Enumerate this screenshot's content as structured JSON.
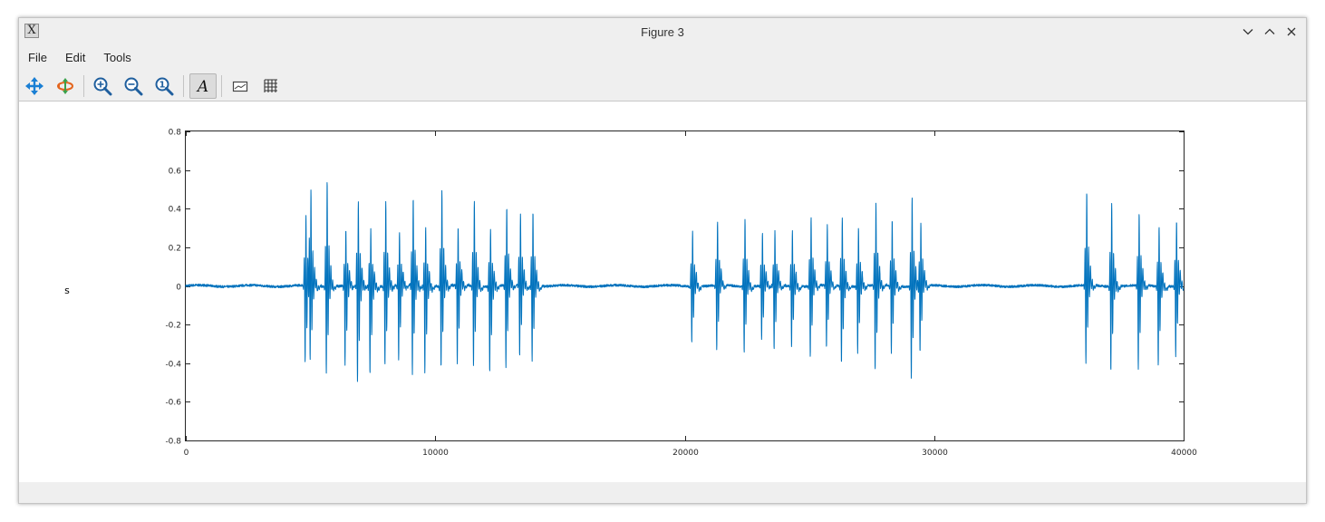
{
  "window": {
    "title": "Figure 3",
    "app_icon_glyph": "X"
  },
  "menubar": {
    "items": [
      "File",
      "Edit",
      "Tools"
    ]
  },
  "toolbar": {
    "buttons": [
      "pan-icon",
      "rotate-icon",
      "zoom-in-icon",
      "zoom-out-icon",
      "zoom-reset-icon",
      "text-tool-icon",
      "axes-icon",
      "grid-icon"
    ],
    "active": "text-tool-icon",
    "text_glyph": "A",
    "zoom_reset_glyph": "1"
  },
  "plot": {
    "ylabel_text": "s"
  },
  "colors": {
    "line": "#0072bd",
    "chrome": "#efefef",
    "icon_blue": "#1a7fd4"
  },
  "chart_data": {
    "type": "line",
    "title": "",
    "xlabel": "",
    "ylabel": "s",
    "xlim": [
      0,
      40000
    ],
    "ylim": [
      -0.8,
      0.8
    ],
    "x_ticks": [
      0,
      10000,
      20000,
      30000,
      40000
    ],
    "y_ticks": [
      -0.8,
      -0.6,
      -0.4,
      -0.2,
      0,
      0.2,
      0.4,
      0.6,
      0.8
    ],
    "x_tick_labels": [
      "0",
      "10000",
      "20000",
      "30000",
      "40000"
    ],
    "y_tick_labels": [
      "-0.8",
      "-0.6",
      "-0.4",
      "-0.2",
      "0",
      "0.2",
      "0.4",
      "0.6",
      "0.8"
    ],
    "grid": false,
    "series": [
      {
        "name": "",
        "color": "#0072bd",
        "burst_groups": [
          {
            "bursts": [
              {
                "x": 4800,
                "max": 0.45,
                "min": -0.45
              },
              {
                "x": 5000,
                "max": 0.62,
                "min": -0.47
              },
              {
                "x": 5650,
                "max": 0.69,
                "min": -0.51
              },
              {
                "x": 6400,
                "max": 0.36,
                "min": -0.47
              },
              {
                "x": 6900,
                "max": 0.54,
                "min": -0.57
              },
              {
                "x": 7400,
                "max": 0.37,
                "min": -0.52
              },
              {
                "x": 8000,
                "max": 0.56,
                "min": -0.46
              },
              {
                "x": 8550,
                "max": 0.35,
                "min": -0.44
              },
              {
                "x": 9100,
                "max": 0.57,
                "min": -0.52
              },
              {
                "x": 9600,
                "max": 0.38,
                "min": -0.51
              },
              {
                "x": 10250,
                "max": 0.62,
                "min": -0.48
              },
              {
                "x": 10900,
                "max": 0.38,
                "min": -0.46
              },
              {
                "x": 11550,
                "max": 0.56,
                "min": -0.47
              },
              {
                "x": 12200,
                "max": 0.38,
                "min": -0.51
              },
              {
                "x": 12850,
                "max": 0.51,
                "min": -0.48
              },
              {
                "x": 13400,
                "max": 0.47,
                "min": -0.42
              },
              {
                "x": 13900,
                "max": 0.48,
                "min": -0.44
              }
            ]
          },
          {
            "bursts": [
              {
                "x": 20300,
                "max": 0.36,
                "min": -0.33
              },
              {
                "x": 21300,
                "max": 0.42,
                "min": -0.38
              },
              {
                "x": 22400,
                "max": 0.44,
                "min": -0.39
              },
              {
                "x": 23100,
                "max": 0.35,
                "min": -0.32
              },
              {
                "x": 23600,
                "max": 0.35,
                "min": -0.38
              },
              {
                "x": 24300,
                "max": 0.36,
                "min": -0.36
              },
              {
                "x": 25050,
                "max": 0.45,
                "min": -0.42
              },
              {
                "x": 25700,
                "max": 0.39,
                "min": -0.37
              },
              {
                "x": 26300,
                "max": 0.45,
                "min": -0.46
              },
              {
                "x": 26950,
                "max": 0.38,
                "min": -0.39
              },
              {
                "x": 27650,
                "max": 0.53,
                "min": -0.5
              },
              {
                "x": 28300,
                "max": 0.43,
                "min": -0.4
              },
              {
                "x": 29100,
                "max": 0.58,
                "min": -0.54
              },
              {
                "x": 29450,
                "max": 0.42,
                "min": -0.38
              }
            ]
          },
          {
            "bursts": [
              {
                "x": 36100,
                "max": 0.61,
                "min": -0.46
              },
              {
                "x": 37100,
                "max": 0.55,
                "min": -0.5
              },
              {
                "x": 38200,
                "max": 0.47,
                "min": -0.5
              },
              {
                "x": 39000,
                "max": 0.39,
                "min": -0.47
              },
              {
                "x": 39700,
                "max": 0.43,
                "min": -0.41
              }
            ]
          }
        ]
      }
    ]
  }
}
